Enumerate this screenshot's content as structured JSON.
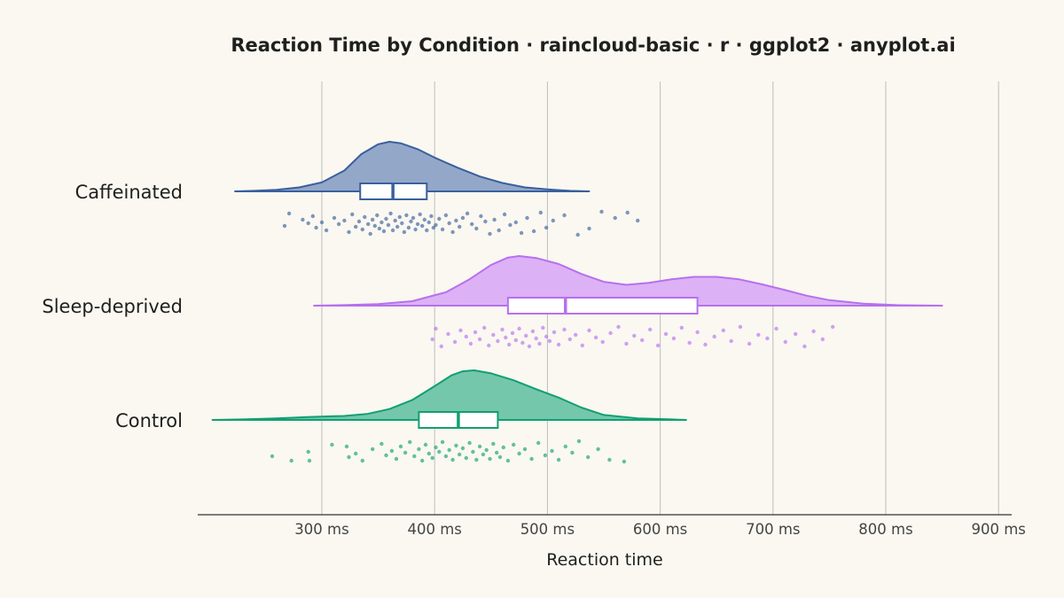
{
  "chart_data": {
    "type": "raincloud",
    "title": "Reaction Time by Condition · raincloud-basic · r · ggplot2 · anyplot.ai",
    "xlabel": "Reaction time",
    "ylabel": "",
    "xlim": [
      190,
      910
    ],
    "x_ticks": [
      300,
      400,
      500,
      600,
      700,
      800,
      900
    ],
    "x_tick_labels": [
      "300 ms",
      "400 ms",
      "500 ms",
      "600 ms",
      "700 ms",
      "800 ms",
      "900 ms"
    ],
    "grid": true,
    "legend": "none",
    "categories": [
      "Caffeinated",
      "Sleep-deprived",
      "Control"
    ],
    "series": [
      {
        "category": "Caffeinated",
        "color": "#3B5F9E",
        "fill": "#93A8C8",
        "box": {
          "q1": 334,
          "median": 363,
          "q3": 393
        },
        "density": [
          [
            223,
            0.0
          ],
          [
            240,
            0.01
          ],
          [
            260,
            0.03
          ],
          [
            280,
            0.08
          ],
          [
            300,
            0.18
          ],
          [
            320,
            0.42
          ],
          [
            335,
            0.75
          ],
          [
            350,
            0.95
          ],
          [
            360,
            1.0
          ],
          [
            370,
            0.97
          ],
          [
            385,
            0.85
          ],
          [
            400,
            0.68
          ],
          [
            420,
            0.48
          ],
          [
            440,
            0.3
          ],
          [
            460,
            0.17
          ],
          [
            480,
            0.08
          ],
          [
            500,
            0.04
          ],
          [
            520,
            0.01
          ],
          [
            537,
            0.0
          ]
        ],
        "points": [
          [
            271,
            1
          ],
          [
            267,
            15
          ],
          [
            283,
            8
          ],
          [
            288,
            12
          ],
          [
            292,
            4
          ],
          [
            295,
            17
          ],
          [
            300,
            11
          ],
          [
            304,
            20
          ],
          [
            311,
            6
          ],
          [
            315,
            13
          ],
          [
            320,
            9
          ],
          [
            324,
            22
          ],
          [
            327,
            2
          ],
          [
            330,
            16
          ],
          [
            333,
            10
          ],
          [
            336,
            19
          ],
          [
            338,
            5
          ],
          [
            341,
            13
          ],
          [
            343,
            24
          ],
          [
            345,
            8
          ],
          [
            347,
            15
          ],
          [
            349,
            3
          ],
          [
            351,
            18
          ],
          [
            353,
            11
          ],
          [
            355,
            21
          ],
          [
            357,
            7
          ],
          [
            359,
            14
          ],
          [
            361,
            1
          ],
          [
            363,
            20
          ],
          [
            365,
            9
          ],
          [
            367,
            16
          ],
          [
            369,
            5
          ],
          [
            371,
            12
          ],
          [
            373,
            22
          ],
          [
            375,
            3
          ],
          [
            377,
            17
          ],
          [
            379,
            10
          ],
          [
            381,
            6
          ],
          [
            383,
            19
          ],
          [
            385,
            13
          ],
          [
            387,
            2
          ],
          [
            389,
            15
          ],
          [
            391,
            8
          ],
          [
            393,
            20
          ],
          [
            395,
            11
          ],
          [
            397,
            4
          ],
          [
            399,
            17
          ],
          [
            401,
            14
          ],
          [
            404,
            7
          ],
          [
            407,
            19
          ],
          [
            410,
            3
          ],
          [
            413,
            12
          ],
          [
            416,
            22
          ],
          [
            419,
            9
          ],
          [
            422,
            16
          ],
          [
            425,
            6
          ],
          [
            429,
            1
          ],
          [
            433,
            13
          ],
          [
            437,
            18
          ],
          [
            441,
            4
          ],
          [
            445,
            10
          ],
          [
            449,
            24
          ],
          [
            453,
            8
          ],
          [
            457,
            20
          ],
          [
            462,
            2
          ],
          [
            467,
            14
          ],
          [
            472,
            11
          ],
          [
            477,
            23
          ],
          [
            482,
            6
          ],
          [
            488,
            21
          ],
          [
            494,
            0
          ],
          [
            499,
            17
          ],
          [
            505,
            9
          ],
          [
            515,
            3
          ],
          [
            527,
            25
          ],
          [
            537,
            18
          ],
          [
            548,
            -1
          ],
          [
            560,
            6
          ],
          [
            571,
            0
          ],
          [
            580,
            9
          ]
        ]
      },
      {
        "category": "Sleep-deprived",
        "color": "#B770EE",
        "fill": "#DDB1F6",
        "box": {
          "q1": 465,
          "median": 516,
          "q3": 633
        },
        "density": [
          [
            293,
            0.0
          ],
          [
            320,
            0.01
          ],
          [
            350,
            0.03
          ],
          [
            380,
            0.09
          ],
          [
            410,
            0.27
          ],
          [
            430,
            0.52
          ],
          [
            450,
            0.82
          ],
          [
            465,
            0.97
          ],
          [
            475,
            1.0
          ],
          [
            490,
            0.96
          ],
          [
            510,
            0.84
          ],
          [
            530,
            0.64
          ],
          [
            550,
            0.48
          ],
          [
            570,
            0.42
          ],
          [
            590,
            0.46
          ],
          [
            610,
            0.53
          ],
          [
            630,
            0.58
          ],
          [
            650,
            0.58
          ],
          [
            670,
            0.53
          ],
          [
            690,
            0.43
          ],
          [
            710,
            0.32
          ],
          [
            730,
            0.2
          ],
          [
            750,
            0.11
          ],
          [
            780,
            0.04
          ],
          [
            810,
            0.01
          ],
          [
            850,
            0.0
          ]
        ],
        "points": [
          [
            401,
            2
          ],
          [
            398,
            14
          ],
          [
            406,
            22
          ],
          [
            412,
            8
          ],
          [
            418,
            17
          ],
          [
            423,
            4
          ],
          [
            428,
            11
          ],
          [
            432,
            19
          ],
          [
            436,
            6
          ],
          [
            440,
            14
          ],
          [
            444,
            1
          ],
          [
            448,
            21
          ],
          [
            452,
            9
          ],
          [
            456,
            16
          ],
          [
            460,
            3
          ],
          [
            463,
            12
          ],
          [
            466,
            20
          ],
          [
            469,
            7
          ],
          [
            472,
            15
          ],
          [
            475,
            2
          ],
          [
            478,
            18
          ],
          [
            481,
            10
          ],
          [
            484,
            22
          ],
          [
            487,
            5
          ],
          [
            490,
            13
          ],
          [
            493,
            19
          ],
          [
            496,
            1
          ],
          [
            499,
            11
          ],
          [
            502,
            16
          ],
          [
            506,
            6
          ],
          [
            510,
            20
          ],
          [
            515,
            3
          ],
          [
            520,
            14
          ],
          [
            525,
            9
          ],
          [
            531,
            21
          ],
          [
            537,
            4
          ],
          [
            543,
            12
          ],
          [
            549,
            17
          ],
          [
            556,
            7
          ],
          [
            563,
            0
          ],
          [
            570,
            19
          ],
          [
            577,
            10
          ],
          [
            584,
            15
          ],
          [
            591,
            3
          ],
          [
            598,
            21
          ],
          [
            605,
            8
          ],
          [
            612,
            13
          ],
          [
            619,
            1
          ],
          [
            626,
            18
          ],
          [
            633,
            6
          ],
          [
            640,
            20
          ],
          [
            648,
            11
          ],
          [
            656,
            4
          ],
          [
            663,
            16
          ],
          [
            671,
            0
          ],
          [
            679,
            19
          ],
          [
            687,
            9
          ],
          [
            695,
            13
          ],
          [
            703,
            2
          ],
          [
            711,
            17
          ],
          [
            720,
            8
          ],
          [
            728,
            22
          ],
          [
            736,
            5
          ],
          [
            744,
            14
          ],
          [
            753,
            0
          ]
        ]
      },
      {
        "category": "Control",
        "color": "#129F71",
        "fill": "#74C7AB",
        "box": {
          "q1": 386,
          "median": 421,
          "q3": 456
        },
        "density": [
          [
            203,
            0.0
          ],
          [
            230,
            0.01
          ],
          [
            260,
            0.03
          ],
          [
            290,
            0.06
          ],
          [
            320,
            0.08
          ],
          [
            340,
            0.12
          ],
          [
            360,
            0.22
          ],
          [
            380,
            0.4
          ],
          [
            400,
            0.68
          ],
          [
            415,
            0.9
          ],
          [
            425,
            0.98
          ],
          [
            435,
            1.0
          ],
          [
            450,
            0.94
          ],
          [
            470,
            0.8
          ],
          [
            490,
            0.62
          ],
          [
            510,
            0.45
          ],
          [
            530,
            0.25
          ],
          [
            550,
            0.1
          ],
          [
            580,
            0.03
          ],
          [
            610,
            0.01
          ],
          [
            623,
            0.0
          ]
        ],
        "points": [
          [
            256,
            17
          ],
          [
            273,
            22
          ],
          [
            288,
            12
          ],
          [
            289,
            22
          ],
          [
            309,
            4
          ],
          [
            322,
            6
          ],
          [
            324,
            18
          ],
          [
            330,
            14
          ],
          [
            336,
            22
          ],
          [
            345,
            9
          ],
          [
            353,
            3
          ],
          [
            357,
            16
          ],
          [
            362,
            11
          ],
          [
            366,
            20
          ],
          [
            370,
            6
          ],
          [
            374,
            13
          ],
          [
            378,
            1
          ],
          [
            382,
            17
          ],
          [
            386,
            9
          ],
          [
            389,
            22
          ],
          [
            392,
            4
          ],
          [
            395,
            14
          ],
          [
            398,
            19
          ],
          [
            401,
            7
          ],
          [
            404,
            12
          ],
          [
            407,
            1
          ],
          [
            410,
            17
          ],
          [
            413,
            10
          ],
          [
            416,
            21
          ],
          [
            419,
            5
          ],
          [
            422,
            15
          ],
          [
            425,
            8
          ],
          [
            428,
            19
          ],
          [
            431,
            2
          ],
          [
            434,
            12
          ],
          [
            437,
            21
          ],
          [
            440,
            6
          ],
          [
            443,
            15
          ],
          [
            446,
            10
          ],
          [
            449,
            20
          ],
          [
            452,
            3
          ],
          [
            455,
            13
          ],
          [
            458,
            18
          ],
          [
            461,
            7
          ],
          [
            465,
            22
          ],
          [
            470,
            4
          ],
          [
            475,
            14
          ],
          [
            480,
            9
          ],
          [
            486,
            20
          ],
          [
            492,
            2
          ],
          [
            498,
            16
          ],
          [
            504,
            11
          ],
          [
            510,
            21
          ],
          [
            516,
            6
          ],
          [
            522,
            13
          ],
          [
            528,
            0
          ],
          [
            536,
            18
          ],
          [
            545,
            9
          ],
          [
            555,
            21
          ],
          [
            568,
            23
          ]
        ]
      }
    ]
  }
}
